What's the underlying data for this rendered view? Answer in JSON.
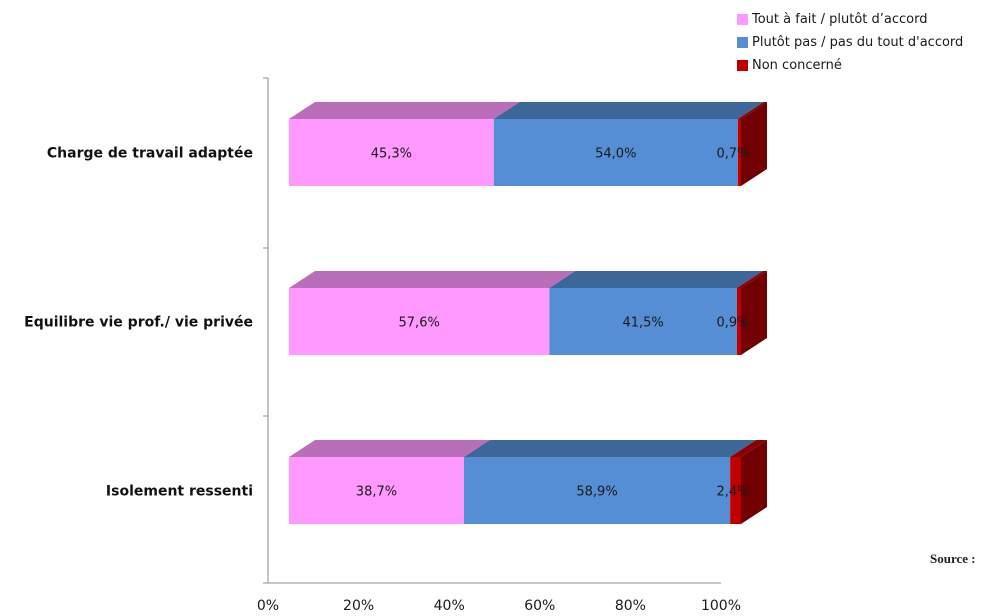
{
  "chart_data": {
    "type": "bar",
    "orientation": "horizontal",
    "stacked": true,
    "three_d": true,
    "categories": [
      "Charge de travail adaptée",
      "Equilibre vie prof./ vie privée",
      "Isolement ressenti"
    ],
    "series": [
      {
        "name": "Tout à fait / plutôt d’accord",
        "color": "#ff99ff",
        "values": [
          45.3,
          57.6,
          38.7
        ],
        "labels": [
          "45,3%",
          "57,6%",
          "38,7%"
        ]
      },
      {
        "name": "Plutôt pas / pas du tout d'accord",
        "color": "#558ed5",
        "values": [
          54.0,
          41.5,
          58.9
        ],
        "labels": [
          "54,0%",
          "41,5%",
          "58,9%"
        ]
      },
      {
        "name": "Non concerné",
        "color": "#c00000",
        "values": [
          0.7,
          0.9,
          2.4
        ],
        "labels": [
          "0,7%",
          "0,9%",
          "2,4%"
        ]
      }
    ],
    "x_ticks": [
      "0%",
      "20%",
      "40%",
      "60%",
      "80%",
      "100%"
    ],
    "xlim": [
      0,
      100
    ],
    "legend_position": "top-right",
    "grid": false
  },
  "source_label": "Source :"
}
